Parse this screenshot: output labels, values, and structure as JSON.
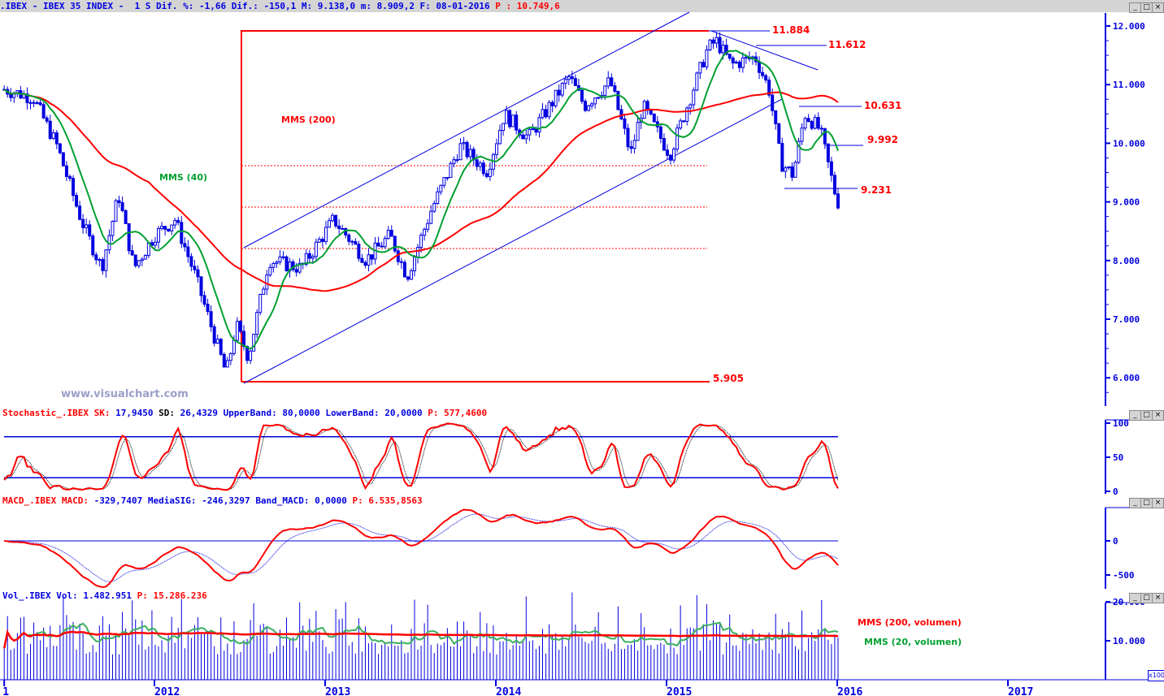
{
  "header": {
    "text": ".IBEX - IBEX 35 INDEX -  1 S Dif. %: -1,66 Dif.: -150,1 M: 9.138,0 m: 8.909,2 F: 08-01-2016",
    "p_text": "P : 10.749,6"
  },
  "watermark": "www.visualchart.com",
  "window_buttons": [
    "_",
    "□",
    "×"
  ],
  "chart_data": [
    {
      "type": "candlestick",
      "title": "IBEX 35 INDEX (weekly)",
      "ylim": [
        5500,
        12400
      ],
      "yticks": [
        "12.000",
        "11.000",
        "10.000",
        "9.000",
        "8.000",
        "7.000",
        "6.000"
      ],
      "ytick_values": [
        12000,
        11000,
        10000,
        9000,
        8000,
        7000,
        6000
      ],
      "xticks": [
        "1",
        "2012",
        "2013",
        "2014",
        "2015",
        "2016",
        "2017"
      ],
      "xtick_values": [
        2011.12,
        2012,
        2013,
        2014,
        2015,
        2016,
        2017
      ],
      "price_path": [
        [
          2011.12,
          10920
        ],
        [
          2011.29,
          10780
        ],
        [
          2011.43,
          9950
        ],
        [
          2011.57,
          8700
        ],
        [
          2011.69,
          7870
        ],
        [
          2011.79,
          9120
        ],
        [
          2011.88,
          7870
        ],
        [
          2012.0,
          8430
        ],
        [
          2012.12,
          8700
        ],
        [
          2012.24,
          7730
        ],
        [
          2012.33,
          6900
        ],
        [
          2012.42,
          6070
        ],
        [
          2012.48,
          6900
        ],
        [
          2012.55,
          6350
        ],
        [
          2012.67,
          8010
        ],
        [
          2012.86,
          7870
        ],
        [
          2013.05,
          8700
        ],
        [
          2013.24,
          8010
        ],
        [
          2013.38,
          8430
        ],
        [
          2013.48,
          7730
        ],
        [
          2013.62,
          8850
        ],
        [
          2013.79,
          9950
        ],
        [
          2013.95,
          9530
        ],
        [
          2014.05,
          10500
        ],
        [
          2014.19,
          10090
        ],
        [
          2014.43,
          11130
        ],
        [
          2014.52,
          10640
        ],
        [
          2014.67,
          11060
        ],
        [
          2014.79,
          9810
        ],
        [
          2014.86,
          10640
        ],
        [
          2015.02,
          9810
        ],
        [
          2015.24,
          11610
        ],
        [
          2015.29,
          11750
        ],
        [
          2015.38,
          11340
        ],
        [
          2015.52,
          11470
        ],
        [
          2015.6,
          10920
        ],
        [
          2015.67,
          9670
        ],
        [
          2015.74,
          9460
        ],
        [
          2015.81,
          10500
        ],
        [
          2015.9,
          10230
        ],
        [
          2015.95,
          9600
        ],
        [
          2016.0,
          9000
        ]
      ],
      "series": [
        {
          "name": "MMS (200)",
          "color": "#ff0000"
        },
        {
          "name": "MMS (40)",
          "color": "#00a030"
        }
      ],
      "annotations": [
        {
          "label": "11.884",
          "value": 11884
        },
        {
          "label": "11.612",
          "value": 11612
        },
        {
          "label": "10.631",
          "value": 10631
        },
        {
          "label": "9.992",
          "value": 9992
        },
        {
          "label": "9.231",
          "value": 9231
        },
        {
          "label": "5.905",
          "value": 5905
        }
      ],
      "ma_labels": {
        "ma200": "MMS (200)",
        "ma40": "MMS (40)"
      }
    },
    {
      "type": "line",
      "title": "Stochastic_.IBEX",
      "legend": {
        "name": "Stochastic_.IBEX",
        "sk_label": "SK:",
        "sk": "17,9450",
        "sd_label": "SD:",
        "sd": "26,4329",
        "ub_label": "UpperBand:",
        "ub": "80,0000",
        "lb_label": "LowerBand:",
        "lb": "20,0000",
        "p_label": "P:",
        "p": "577,4600"
      },
      "ylim": [
        0,
        100
      ],
      "yticks": [
        "100",
        "50",
        "0"
      ],
      "bands": [
        80,
        20
      ]
    },
    {
      "type": "line",
      "title": "MACD_.IBEX",
      "legend": {
        "name": "MACD_.IBEX",
        "macd_label": "MACD:",
        "macd": "-329,7407",
        "sig_label": "MediaSIG:",
        "sig": "-246,3297",
        "band_label": "Band_MACD:",
        "band": "0,0000",
        "p_label": "P:",
        "p": "6.535,8563"
      },
      "ylim": [
        -700,
        500
      ],
      "yticks": [
        "0",
        "-500"
      ],
      "band": 0
    },
    {
      "type": "bar",
      "title": "Vol_.IBEX",
      "legend": {
        "name": "Vol_.IBEX",
        "vol_label": "Vol:",
        "vol": "1.482.951",
        "p_label": "P:",
        "p": "15.286.236"
      },
      "ylim": [
        0,
        23000
      ],
      "yticks": [
        "20.000",
        "10.000"
      ],
      "unit_label": "x100",
      "series": [
        {
          "name": "MMS (200, volumen)",
          "color": "#ff0000"
        },
        {
          "name": "MMS (20, volumen)",
          "color": "#00a030"
        }
      ]
    }
  ]
}
